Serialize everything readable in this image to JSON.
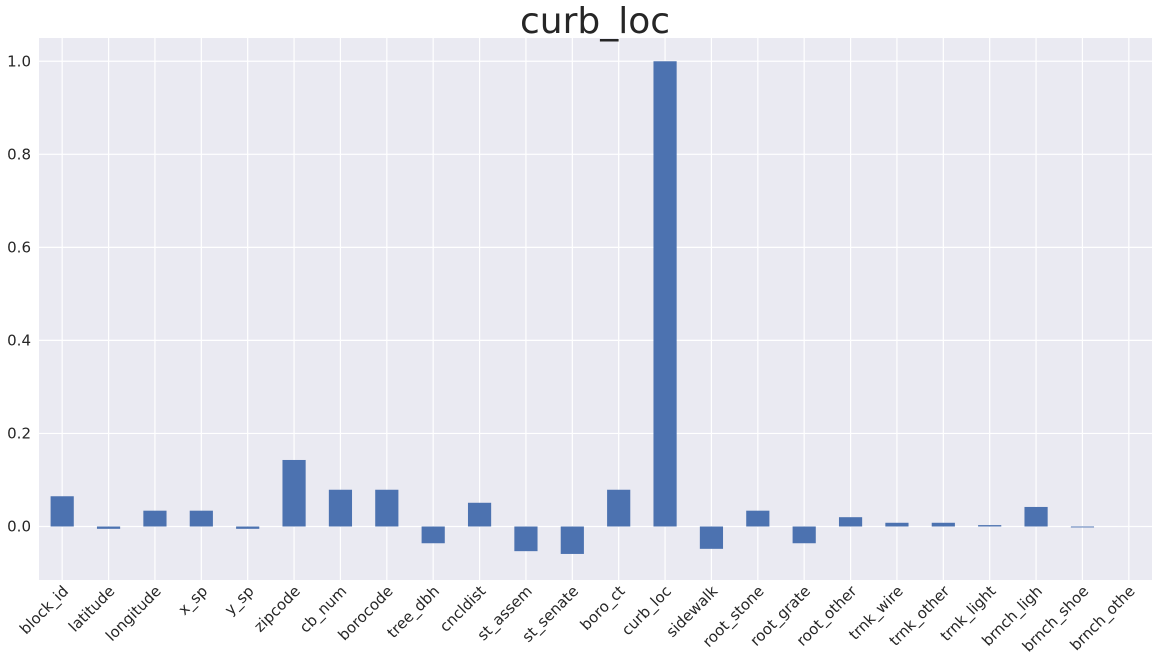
{
  "chart_data": {
    "type": "bar",
    "title": "curb_loc",
    "xlabel": "",
    "ylabel": "",
    "categories": [
      "block_id",
      "latitude",
      "longitude",
      "x_sp",
      "y_sp",
      "zipcode",
      "cb_num",
      "borocode",
      "tree_dbh",
      "cncldist",
      "st_assem",
      "st_senate",
      "boro_ct",
      "curb_loc",
      "sidewalk",
      "root_stone",
      "root_grate",
      "root_other",
      "trnk_wire",
      "trnk_other",
      "trnk_light",
      "brnch_ligh",
      "brnch_shoe",
      "brnch_othe"
    ],
    "values": [
      0.065,
      -0.005,
      0.034,
      0.034,
      -0.005,
      0.143,
      0.079,
      0.079,
      -0.036,
      0.051,
      -0.053,
      -0.059,
      0.079,
      1.0,
      -0.048,
      0.034,
      -0.036,
      0.02,
      0.008,
      0.008,
      0.003,
      0.042,
      -0.002,
      0.0
    ],
    "ylim": [
      -0.115,
      1.05
    ],
    "yticks": [
      0.0,
      0.2,
      0.4,
      0.6,
      0.8,
      1.0
    ],
    "ytick_labels": [
      "0.0",
      "0.2",
      "0.4",
      "0.6",
      "0.8",
      "1.0"
    ],
    "grid": true,
    "bar_color": "#4c72b0",
    "background_color": "#eaeaf2",
    "grid_color": "#ffffff"
  }
}
